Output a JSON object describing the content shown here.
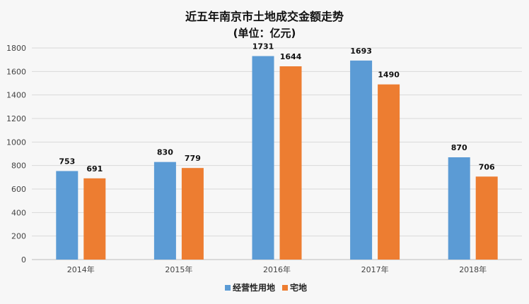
{
  "chart_data": {
    "type": "bar",
    "title": "近五年南京市土地成交金额走势",
    "subtitle": "(单位：亿元)",
    "categories": [
      "2014年",
      "2015年",
      "2016年",
      "2017年",
      "2018年"
    ],
    "series": [
      {
        "name": "经营性用地",
        "color": "#5b9bd5",
        "values": [
          753,
          830,
          1731,
          1693,
          870
        ]
      },
      {
        "name": "宅地",
        "color": "#ed7d31",
        "values": [
          691,
          779,
          1644,
          1490,
          706
        ]
      }
    ],
    "y_ticks": [
      "0",
      "200",
      "400",
      "600",
      "800",
      "1000",
      "1200",
      "1400",
      "1600",
      "1800"
    ],
    "ylim": [
      0,
      1800
    ],
    "grid": true,
    "legend_position": "bottom-center",
    "data_labels": true
  }
}
